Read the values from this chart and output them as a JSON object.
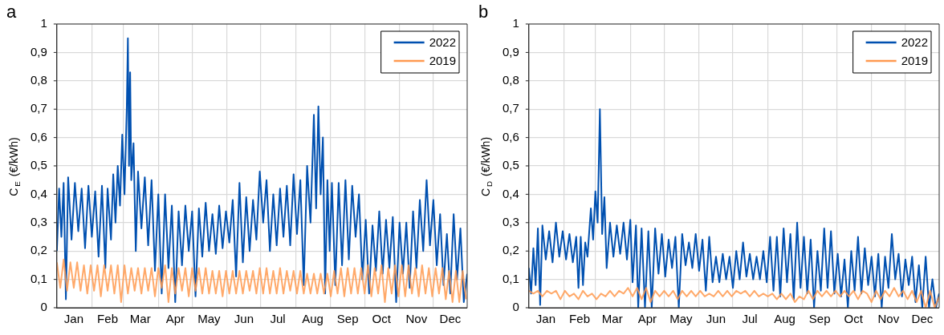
{
  "chart_data": [
    {
      "type": "line",
      "title": "a",
      "ylabel": "C$_{E}$ (€/kWh)",
      "legend": "top right",
      "grid": true,
      "marker": "none",
      "line_style": "solid",
      "xlim": [
        "--01-01",
        "--12-31"
      ],
      "ylim": [
        0,
        1
      ],
      "yticks": [
        {
          "value": 0,
          "label": "0"
        },
        {
          "value": 0.1,
          "label": "0,1"
        },
        {
          "value": 0.2,
          "label": "0,2"
        },
        {
          "value": 0.3,
          "label": "0,3"
        },
        {
          "value": 0.4,
          "label": "0,4"
        },
        {
          "value": 0.5,
          "label": "0,5"
        },
        {
          "value": 0.6,
          "label": "0,6"
        },
        {
          "value": 0.7,
          "label": "0,7"
        },
        {
          "value": 0.8,
          "label": "0,8"
        },
        {
          "value": 0.9,
          "label": "0,9"
        },
        {
          "value": 1,
          "label": "1"
        }
      ],
      "xticks": [
        {
          "value": "--01-01",
          "label": null
        },
        {
          "value": "--02-01",
          "label": null
        },
        {
          "value": "--03-01",
          "label": null
        },
        {
          "value": "--04-01",
          "label": null
        },
        {
          "value": "--05-01",
          "label": null
        },
        {
          "value": "--06-01",
          "label": null
        },
        {
          "value": "--07-01",
          "label": null
        },
        {
          "value": "--08-01",
          "label": null
        },
        {
          "value": "--09-01",
          "label": null
        },
        {
          "value": "--10-01",
          "label": null
        },
        {
          "value": "--11-01",
          "label": null
        },
        {
          "value": "--12-01",
          "label": null
        },
        {
          "value": "--01-16",
          "label": "Jan"
        },
        {
          "value": "--02-15",
          "label": "Feb"
        },
        {
          "value": "--03-16",
          "label": "Mar"
        },
        {
          "value": "--04-16",
          "label": "Apr"
        },
        {
          "value": "--05-16",
          "label": "May"
        },
        {
          "value": "--06-16",
          "label": "Jun"
        },
        {
          "value": "--07-16",
          "label": "Jul"
        },
        {
          "value": "--08-16",
          "label": "Aug"
        },
        {
          "value": "--09-16",
          "label": "Sep"
        },
        {
          "value": "--10-16",
          "label": "Oct"
        },
        {
          "value": "--11-16",
          "label": "Nov"
        },
        {
          "value": "--12-16",
          "label": "Dec"
        }
      ],
      "series": [
        {
          "name": "2022",
          "color": "#0050b0",
          "x": [
            "--01-01",
            "--01-03",
            "--01-05",
            "--01-07",
            "--01-09",
            "--01-11",
            "--01-14",
            "--01-17",
            "--01-20",
            "--01-23",
            "--01-26",
            "--01-29",
            "--02-01",
            "--02-04",
            "--02-07",
            "--02-10",
            "--02-13",
            "--02-15",
            "--02-18",
            "--02-20",
            "--02-22",
            "--02-24",
            "--02-26",
            "--02-28",
            "--03-02",
            "--03-04",
            "--03-05",
            "--03-06",
            "--03-07",
            "--03-08",
            "--03-10",
            "--03-12",
            "--03-14",
            "--03-17",
            "--03-20",
            "--03-23",
            "--03-26",
            "--03-29",
            "--04-01",
            "--04-04",
            "--04-07",
            "--04-10",
            "--04-13",
            "--04-16",
            "--04-19",
            "--04-22",
            "--04-25",
            "--04-28",
            "--05-01",
            "--05-04",
            "--05-07",
            "--05-10",
            "--05-13",
            "--05-16",
            "--05-19",
            "--05-22",
            "--05-25",
            "--05-28",
            "--05-31",
            "--06-03",
            "--06-06",
            "--06-09",
            "--06-12",
            "--06-15",
            "--06-18",
            "--06-21",
            "--06-24",
            "--06-27",
            "--06-30",
            "--07-03",
            "--07-06",
            "--07-09",
            "--07-12",
            "--07-15",
            "--07-18",
            "--07-21",
            "--07-24",
            "--07-27",
            "--07-30",
            "--08-02",
            "--08-05",
            "--08-08",
            "--08-11",
            "--08-14",
            "--08-17",
            "--08-19",
            "--08-21",
            "--08-23",
            "--08-25",
            "--08-27",
            "--08-29",
            "--08-31",
            "--09-02",
            "--09-05",
            "--09-08",
            "--09-11",
            "--09-14",
            "--09-17",
            "--09-20",
            "--09-23",
            "--09-26",
            "--09-29",
            "--10-02",
            "--10-05",
            "--10-08",
            "--10-11",
            "--10-14",
            "--10-17",
            "--10-20",
            "--10-23",
            "--10-26",
            "--10-29",
            "--11-01",
            "--11-04",
            "--11-07",
            "--11-10",
            "--11-13",
            "--11-16",
            "--11-19",
            "--11-22",
            "--11-25",
            "--11-28",
            "--12-01",
            "--12-04",
            "--12-07",
            "--12-10",
            "--12-13",
            "--12-16",
            "--12-19",
            "--12-22",
            "--12-25",
            "--12-28",
            "--12-31"
          ],
          "values": [
            0.2,
            0.42,
            0.25,
            0.44,
            0.03,
            0.46,
            0.24,
            0.44,
            0.27,
            0.42,
            0.21,
            0.43,
            0.25,
            0.41,
            0.18,
            0.43,
            0.14,
            0.42,
            0.24,
            0.47,
            0.3,
            0.5,
            0.36,
            0.61,
            0.4,
            0.7,
            0.95,
            0.5,
            0.83,
            0.45,
            0.58,
            0.2,
            0.48,
            0.28,
            0.46,
            0.22,
            0.45,
            0.13,
            0.4,
            0.05,
            0.4,
            0.14,
            0.36,
            0.02,
            0.34,
            0.15,
            0.36,
            0.2,
            0.34,
            0.04,
            0.35,
            0.18,
            0.37,
            0.2,
            0.33,
            0.19,
            0.36,
            0.21,
            0.34,
            0.23,
            0.38,
            0.11,
            0.44,
            0.16,
            0.39,
            0.2,
            0.38,
            0.24,
            0.48,
            0.3,
            0.45,
            0.2,
            0.4,
            0.22,
            0.42,
            0.25,
            0.43,
            0.22,
            0.47,
            0.26,
            0.45,
            0.08,
            0.5,
            0.3,
            0.68,
            0.35,
            0.71,
            0.4,
            0.6,
            0.05,
            0.45,
            0.2,
            0.44,
            0.08,
            0.44,
            0.15,
            0.45,
            0.17,
            0.43,
            0.25,
            0.4,
            0.1,
            0.31,
            0.05,
            0.29,
            0.13,
            0.34,
            0.12,
            0.31,
            0.14,
            0.32,
            0.02,
            0.3,
            0.12,
            0.3,
            0.07,
            0.34,
            0.14,
            0.38,
            0.2,
            0.45,
            0.22,
            0.38,
            0.15,
            0.33,
            0.08,
            0.26,
            0.05,
            0.33,
            0.1,
            0.28,
            0.02,
            0.12
          ]
        },
        {
          "name": "2019",
          "color": "#ff9a50",
          "x": [
            "--01-01",
            "--01-04",
            "--01-07",
            "--01-10",
            "--01-13",
            "--01-16",
            "--01-19",
            "--01-22",
            "--01-25",
            "--01-28",
            "--01-31",
            "--02-03",
            "--02-06",
            "--02-09",
            "--02-12",
            "--02-15",
            "--02-18",
            "--02-21",
            "--02-24",
            "--02-27",
            "--03-02",
            "--03-05",
            "--03-08",
            "--03-11",
            "--03-14",
            "--03-17",
            "--03-20",
            "--03-23",
            "--03-26",
            "--03-29",
            "--04-01",
            "--04-04",
            "--04-07",
            "--04-10",
            "--04-13",
            "--04-16",
            "--04-19",
            "--04-22",
            "--04-25",
            "--04-28",
            "--05-01",
            "--05-04",
            "--05-07",
            "--05-10",
            "--05-13",
            "--05-16",
            "--05-19",
            "--05-22",
            "--05-25",
            "--05-28",
            "--05-31",
            "--06-03",
            "--06-06",
            "--06-09",
            "--06-12",
            "--06-15",
            "--06-18",
            "--06-21",
            "--06-24",
            "--06-27",
            "--06-30",
            "--07-03",
            "--07-06",
            "--07-09",
            "--07-12",
            "--07-15",
            "--07-18",
            "--07-21",
            "--07-24",
            "--07-27",
            "--07-30",
            "--08-02",
            "--08-05",
            "--08-08",
            "--08-11",
            "--08-14",
            "--08-17",
            "--08-20",
            "--08-23",
            "--08-26",
            "--08-29",
            "--09-01",
            "--09-04",
            "--09-07",
            "--09-10",
            "--09-13",
            "--09-16",
            "--09-19",
            "--09-22",
            "--09-25",
            "--09-28",
            "--10-01",
            "--10-04",
            "--10-07",
            "--10-10",
            "--10-13",
            "--10-16",
            "--10-19",
            "--10-22",
            "--10-25",
            "--10-28",
            "--10-31",
            "--11-03",
            "--11-06",
            "--11-09",
            "--11-12",
            "--11-15",
            "--11-18",
            "--11-21",
            "--11-24",
            "--11-27",
            "--11-30",
            "--12-03",
            "--12-06",
            "--12-09",
            "--12-12",
            "--12-15",
            "--12-18",
            "--12-21",
            "--12-24",
            "--12-27",
            "--12-30"
          ],
          "values": [
            0.16,
            0.07,
            0.17,
            0.06,
            0.16,
            0.07,
            0.16,
            0.06,
            0.15,
            0.05,
            0.15,
            0.06,
            0.15,
            0.04,
            0.15,
            0.06,
            0.15,
            0.05,
            0.15,
            0.02,
            0.15,
            0.05,
            0.14,
            0.06,
            0.14,
            0.05,
            0.14,
            0.06,
            0.14,
            0.04,
            0.14,
            0.07,
            0.15,
            0.02,
            0.14,
            0.05,
            0.14,
            0.06,
            0.14,
            0.04,
            0.14,
            0.06,
            0.14,
            0.05,
            0.14,
            0.05,
            0.13,
            0.05,
            0.13,
            0.04,
            0.13,
            0.05,
            0.13,
            0.05,
            0.13,
            0.05,
            0.13,
            0.06,
            0.13,
            0.05,
            0.14,
            0.05,
            0.14,
            0.05,
            0.13,
            0.05,
            0.14,
            0.05,
            0.13,
            0.06,
            0.13,
            0.05,
            0.13,
            0.05,
            0.12,
            0.05,
            0.12,
            0.05,
            0.12,
            0.05,
            0.12,
            0.04,
            0.13,
            0.05,
            0.14,
            0.04,
            0.14,
            0.05,
            0.14,
            0.05,
            0.14,
            0.05,
            0.15,
            0.04,
            0.14,
            0.05,
            0.15,
            0.02,
            0.14,
            0.05,
            0.15,
            0.04,
            0.15,
            0.04,
            0.15,
            0.05,
            0.14,
            0.04,
            0.15,
            0.05,
            0.14,
            0.04,
            0.14,
            0.05,
            0.14,
            0.03,
            0.13,
            0.02,
            0.13,
            0.02,
            0.13,
            0.03
          ]
        }
      ]
    },
    {
      "type": "line",
      "title": "b",
      "ylabel": "C$_{D}$ (€/kWh)",
      "legend": "top right",
      "grid": true,
      "marker": "none",
      "line_style": "solid",
      "xlim": [
        "--01-01",
        "--12-31"
      ],
      "ylim": [
        0,
        1
      ],
      "yticks": [
        {
          "value": 0,
          "label": "0"
        },
        {
          "value": 0.1,
          "label": "0,1"
        },
        {
          "value": 0.2,
          "label": "0,2"
        },
        {
          "value": 0.3,
          "label": "0,3"
        },
        {
          "value": 0.4,
          "label": "0,4"
        },
        {
          "value": 0.5,
          "label": "0,5"
        },
        {
          "value": 0.6,
          "label": "0,6"
        },
        {
          "value": 0.7,
          "label": "0,7"
        },
        {
          "value": 0.8,
          "label": "0,8"
        },
        {
          "value": 0.9,
          "label": "0,9"
        },
        {
          "value": 1,
          "label": "1"
        }
      ],
      "xticks": [
        {
          "value": "--01-01",
          "label": null
        },
        {
          "value": "--02-01",
          "label": null
        },
        {
          "value": "--03-01",
          "label": null
        },
        {
          "value": "--04-01",
          "label": null
        },
        {
          "value": "--05-01",
          "label": null
        },
        {
          "value": "--06-01",
          "label": null
        },
        {
          "value": "--07-01",
          "label": null
        },
        {
          "value": "--08-01",
          "label": null
        },
        {
          "value": "--09-01",
          "label": null
        },
        {
          "value": "--10-01",
          "label": null
        },
        {
          "value": "--11-01",
          "label": null
        },
        {
          "value": "--12-01",
          "label": null
        },
        {
          "value": "--01-16",
          "label": "Jan"
        },
        {
          "value": "--02-15",
          "label": "Feb"
        },
        {
          "value": "--03-16",
          "label": "Mar"
        },
        {
          "value": "--04-16",
          "label": "Apr"
        },
        {
          "value": "--05-16",
          "label": "May"
        },
        {
          "value": "--06-16",
          "label": "Jun"
        },
        {
          "value": "--07-16",
          "label": "Jul"
        },
        {
          "value": "--08-16",
          "label": "Aug"
        },
        {
          "value": "--09-16",
          "label": "Sep"
        },
        {
          "value": "--10-16",
          "label": "Oct"
        },
        {
          "value": "--11-16",
          "label": "Nov"
        },
        {
          "value": "--12-16",
          "label": "Dec"
        }
      ],
      "series": [
        {
          "name": "2022",
          "color": "#0050b0",
          "x": [
            "--01-01",
            "--01-03",
            "--01-05",
            "--01-07",
            "--01-09",
            "--01-11",
            "--01-13",
            "--01-16",
            "--01-19",
            "--01-22",
            "--01-25",
            "--01-28",
            "--01-31",
            "--02-03",
            "--02-06",
            "--02-09",
            "--02-12",
            "--02-14",
            "--02-16",
            "--02-18",
            "--02-20",
            "--02-22",
            "--02-25",
            "--02-27",
            "--03-01",
            "--03-03",
            "--03-05",
            "--03-07",
            "--03-09",
            "--03-11",
            "--03-14",
            "--03-17",
            "--03-20",
            "--03-23",
            "--03-26",
            "--03-29",
            "--04-01",
            "--04-03",
            "--04-06",
            "--04-08",
            "--04-11",
            "--04-14",
            "--04-17",
            "--04-20",
            "--04-23",
            "--04-26",
            "--04-29",
            "--05-02",
            "--05-05",
            "--05-08",
            "--05-11",
            "--05-14",
            "--05-17",
            "--05-20",
            "--05-23",
            "--05-26",
            "--05-29",
            "--06-01",
            "--06-04",
            "--06-07",
            "--06-10",
            "--06-13",
            "--06-16",
            "--06-19",
            "--06-22",
            "--06-25",
            "--06-28",
            "--07-01",
            "--07-04",
            "--07-07",
            "--07-10",
            "--07-13",
            "--07-16",
            "--07-19",
            "--07-22",
            "--07-25",
            "--07-28",
            "--07-31",
            "--08-03",
            "--08-06",
            "--08-09",
            "--08-12",
            "--08-15",
            "--08-18",
            "--08-21",
            "--08-24",
            "--08-27",
            "--08-30",
            "--09-02",
            "--09-05",
            "--09-08",
            "--09-11",
            "--09-14",
            "--09-17",
            "--09-20",
            "--09-23",
            "--09-26",
            "--09-29",
            "--10-02",
            "--10-05",
            "--10-08",
            "--10-11",
            "--10-14",
            "--10-17",
            "--10-20",
            "--10-23",
            "--10-26",
            "--10-29",
            "--11-01",
            "--11-04",
            "--11-07",
            "--11-10",
            "--11-13",
            "--11-16",
            "--11-19",
            "--11-22",
            "--11-25",
            "--11-28",
            "--12-01",
            "--12-04",
            "--12-07",
            "--12-10",
            "--12-13",
            "--12-16",
            "--12-19",
            "--12-22",
            "--12-25",
            "--12-28",
            "--12-31"
          ],
          "values": [
            0.14,
            0.05,
            0.21,
            0.08,
            0.28,
            0.01,
            0.29,
            0.17,
            0.27,
            0.16,
            0.3,
            0.18,
            0.27,
            0.17,
            0.26,
            0.16,
            0.25,
            0.07,
            0.25,
            0.08,
            0.23,
            0.18,
            0.35,
            0.24,
            0.41,
            0.3,
            0.7,
            0.26,
            0.39,
            0.14,
            0.3,
            0.18,
            0.29,
            0.19,
            0.3,
            0.17,
            0.31,
            0.09,
            0.29,
            0.0,
            0.28,
            0.0,
            0.27,
            0.0,
            0.28,
            0.12,
            0.26,
            0.11,
            0.24,
            0.14,
            0.25,
            0.0,
            0.26,
            0.15,
            0.23,
            0.14,
            0.26,
            0.13,
            0.24,
            0.06,
            0.25,
            0.09,
            0.18,
            0.09,
            0.19,
            0.1,
            0.18,
            0.07,
            0.2,
            0.1,
            0.23,
            0.11,
            0.19,
            0.1,
            0.18,
            0.1,
            0.2,
            0.09,
            0.25,
            0.06,
            0.25,
            0.04,
            0.28,
            0.09,
            0.26,
            0.03,
            0.3,
            0.07,
            0.25,
            0.05,
            0.24,
            0.0,
            0.2,
            0.06,
            0.28,
            0.07,
            0.27,
            0.05,
            0.19,
            0.04,
            0.17,
            0.0,
            0.2,
            0.06,
            0.25,
            0.05,
            0.21,
            0.08,
            0.18,
            0.04,
            0.19,
            0.0,
            0.18,
            0.07,
            0.26,
            0.1,
            0.19,
            0.04,
            0.17,
            0.08,
            0.18,
            0.02,
            0.15,
            0.0,
            0.18,
            0.0,
            0.1,
            0.0,
            0.05
          ]
        },
        {
          "name": "2019",
          "color": "#ff9a50",
          "x": [
            "--01-01",
            "--01-05",
            "--01-09",
            "--01-13",
            "--01-17",
            "--01-21",
            "--01-25",
            "--01-29",
            "--02-02",
            "--02-06",
            "--02-10",
            "--02-14",
            "--02-18",
            "--02-22",
            "--02-26",
            "--03-02",
            "--03-06",
            "--03-10",
            "--03-14",
            "--03-18",
            "--03-22",
            "--03-26",
            "--03-30",
            "--04-03",
            "--04-07",
            "--04-11",
            "--04-15",
            "--04-19",
            "--04-23",
            "--04-27",
            "--05-01",
            "--05-05",
            "--05-09",
            "--05-13",
            "--05-17",
            "--05-21",
            "--05-25",
            "--05-29",
            "--06-02",
            "--06-06",
            "--06-10",
            "--06-14",
            "--06-18",
            "--06-22",
            "--06-26",
            "--06-30",
            "--07-04",
            "--07-08",
            "--07-12",
            "--07-16",
            "--07-20",
            "--07-24",
            "--07-28",
            "--08-01",
            "--08-05",
            "--08-09",
            "--08-13",
            "--08-17",
            "--08-21",
            "--08-25",
            "--08-29",
            "--09-02",
            "--09-06",
            "--09-10",
            "--09-14",
            "--09-18",
            "--09-22",
            "--09-26",
            "--09-30",
            "--10-04",
            "--10-08",
            "--10-12",
            "--10-16",
            "--10-20",
            "--10-24",
            "--10-28",
            "--11-01",
            "--11-05",
            "--11-09",
            "--11-13",
            "--11-17",
            "--11-21",
            "--11-25",
            "--11-29",
            "--12-03",
            "--12-07",
            "--12-11",
            "--12-15",
            "--12-19",
            "--12-23",
            "--12-27",
            "--12-31"
          ],
          "values": [
            0.06,
            0.05,
            0.06,
            0.04,
            0.06,
            0.05,
            0.06,
            0.03,
            0.06,
            0.04,
            0.05,
            0.03,
            0.06,
            0.04,
            0.05,
            0.03,
            0.05,
            0.04,
            0.06,
            0.04,
            0.06,
            0.05,
            0.07,
            0.04,
            0.07,
            0.03,
            0.07,
            0.02,
            0.06,
            0.04,
            0.06,
            0.04,
            0.06,
            0.03,
            0.06,
            0.04,
            0.06,
            0.04,
            0.06,
            0.04,
            0.05,
            0.04,
            0.06,
            0.04,
            0.06,
            0.04,
            0.06,
            0.05,
            0.06,
            0.04,
            0.06,
            0.04,
            0.05,
            0.04,
            0.05,
            0.03,
            0.05,
            0.03,
            0.05,
            0.02,
            0.04,
            0.03,
            0.06,
            0.03,
            0.06,
            0.04,
            0.06,
            0.04,
            0.06,
            0.04,
            0.06,
            0.04,
            0.06,
            0.03,
            0.06,
            0.05,
            0.02,
            0.06,
            0.03,
            0.06,
            0.04,
            0.07,
            0.04,
            0.06,
            0.03,
            0.06,
            0.02,
            0.06,
            0.0,
            0.06,
            0.0,
            0.04
          ]
        }
      ]
    }
  ]
}
